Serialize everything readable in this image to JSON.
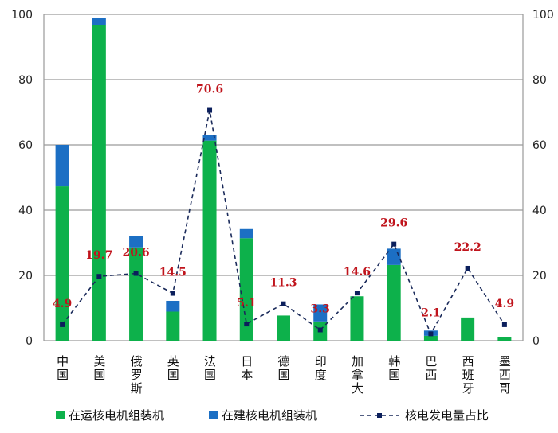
{
  "chart_data": {
    "type": "bar",
    "stacked": true,
    "categories": [
      "中国",
      "美国",
      "俄罗斯",
      "英国",
      "法国",
      "日本",
      "德国",
      "印度",
      "加拿大",
      "韩国",
      "巴西",
      "西班牙",
      "墨西哥"
    ],
    "series": [
      {
        "name": "在运核电机组装机",
        "type": "bar",
        "axis": "left",
        "color": "#0db14b",
        "values": [
          47.3,
          96.8,
          28.6,
          8.9,
          61.3,
          31.4,
          7.7,
          5.9,
          13.6,
          23.2,
          1.5,
          7.1,
          1.1
        ]
      },
      {
        "name": "在建核电机组装机",
        "type": "bar",
        "axis": "left",
        "color": "#1c6fc4",
        "values": [
          12.7,
          2.2,
          3.4,
          3.3,
          1.8,
          2.8,
          0,
          5.2,
          0,
          5.0,
          1.6,
          0,
          0
        ]
      },
      {
        "name": "核电发电量占比",
        "type": "line",
        "axis": "right",
        "color": "#1a2a5a",
        "dashed": true,
        "values": [
          4.9,
          19.7,
          20.6,
          14.5,
          70.6,
          5.1,
          11.3,
          3.3,
          14.6,
          29.6,
          2.1,
          22.2,
          4.9
        ],
        "labels": [
          "4.9",
          "19.7",
          "20.6",
          "14.5",
          "70.6",
          "5.1",
          "11.3",
          "3.3",
          "14.6",
          "29.6",
          "2.1",
          "22.2",
          "4.9"
        ]
      }
    ],
    "ylim": [
      0,
      100
    ],
    "y2lim": [
      0,
      100
    ],
    "yticks": [
      "0",
      "20",
      "40",
      "60",
      "80",
      "100"
    ],
    "y2ticks": [
      "0",
      "20",
      "40",
      "60",
      "80",
      "100"
    ],
    "grid": true,
    "legend": "bottom",
    "label_color": "#c0141c"
  }
}
